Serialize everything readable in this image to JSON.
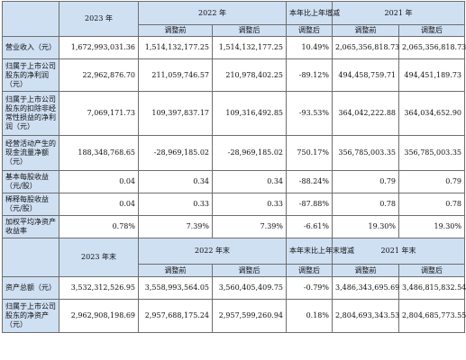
{
  "header1": {
    "c2023": "2023 年",
    "c2022": "2022 年",
    "yoy": "本年比上年增减",
    "c2021": "2021 年",
    "before": "调整前",
    "after": "调整后",
    "after_yoy": "调整后"
  },
  "header2": {
    "c2023": "2023 年末",
    "c2022": "2022 年末",
    "yoy": "本年末比上年末增减",
    "c2021": "2021 年末",
    "before": "调整前",
    "after": "调整后",
    "after_yoy": "调整后"
  },
  "rows": [
    {
      "label": "营业收入（元）",
      "v2023": "1,672,993,031.36",
      "v2022_before": "1,514,132,177.25",
      "v2022_after": "1,514,132,177.25",
      "yoy": "10.49%",
      "v2021_before": "2,065,356,818.73",
      "v2021_after": "2,065,356,818.73"
    },
    {
      "label": "归属于上市公司股东的净利润（元）",
      "v2023": "22,962,876.70",
      "v2022_before": "211,059,746.57",
      "v2022_after": "210,978,402.25",
      "yoy": "-89.12%",
      "v2021_before": "494,458,759.71",
      "v2021_after": "494,451,189.73"
    },
    {
      "label": "归属于上市公司股东的扣除非经常性损益的净利润（元）",
      "v2023": "7,069,171.73",
      "v2022_before": "109,397,837.17",
      "v2022_after": "109,316,492.85",
      "yoy": "-93.53%",
      "v2021_before": "364,042,222.88",
      "v2021_after": "364,034,652.90"
    },
    {
      "label": "经营活动产生的现金流量净额（元）",
      "v2023": "188,348,768.65",
      "v2022_before": "-28,969,185.02",
      "v2022_after": "-28,969,185.02",
      "yoy": "750.17%",
      "v2021_before": "356,785,003.35",
      "v2021_after": "356,785,003.35"
    },
    {
      "label": "基本每股收益（元/股）",
      "v2023": "0.04",
      "v2022_before": "0.34",
      "v2022_after": "0.34",
      "yoy": "-88.24%",
      "v2021_before": "0.79",
      "v2021_after": "0.79"
    },
    {
      "label": "稀释每股收益（元/股）",
      "v2023": "0.04",
      "v2022_before": "0.33",
      "v2022_after": "0.33",
      "yoy": "-87.88%",
      "v2021_before": "0.78",
      "v2021_after": "0.78"
    },
    {
      "label": "加权平均净资产收益率",
      "v2023": "0.78%",
      "v2022_before": "7.39%",
      "v2022_after": "7.39%",
      "yoy": "-6.61%",
      "v2021_before": "19.30%",
      "v2021_after": "19.30%"
    }
  ],
  "rows2": [
    {
      "label": "资产总额（元）",
      "v2023": "3,532,312,526.95",
      "v2022_before": "3,558,993,564.05",
      "v2022_after": "3,560,405,409.75",
      "yoy": "-0.79%",
      "v2021_before": "3,486,343,695.69",
      "v2021_after": "3,486,815,832.54"
    },
    {
      "label": "归属于上市公司股东的净资产（元）",
      "v2023": "2,962,908,198.69",
      "v2022_before": "2,957,688,175.24",
      "v2022_after": "2,957,599,260.94",
      "yoy": "0.18%",
      "v2021_before": "2,804,693,343.53",
      "v2021_after": "2,804,685,773.55"
    }
  ]
}
